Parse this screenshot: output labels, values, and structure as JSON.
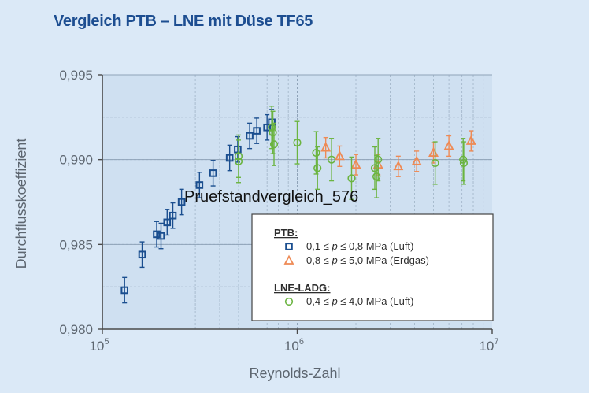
{
  "title": "Vergleich PTB – LNE mit Düse TF65",
  "watermark": "Pruefstandvergleich_576",
  "colors": {
    "background": "#dbe9f7",
    "plot_bg": "#cfe0f1",
    "ptb_luft": "#1a4e8f",
    "ptb_erdgas": "#ee8a55",
    "lne_luft": "#6bb441",
    "errbar_lne": "#6bb441",
    "title": "#1d4e91"
  },
  "chart_data": {
    "type": "scatter",
    "x_scale": "log",
    "xlim": [
      100000,
      10000000
    ],
    "ylim": [
      0.98,
      0.995
    ],
    "xlabel": "Reynolds-Zahl",
    "ylabel": "Durchflusskoeffizient",
    "x_ticks": [
      {
        "value": 100000,
        "base": "10",
        "exp": "5"
      },
      {
        "value": 1000000,
        "base": "10",
        "exp": "6"
      },
      {
        "value": 10000000,
        "base": "10",
        "exp": "7"
      }
    ],
    "y_ticks": [
      {
        "value": 0.98,
        "label": "0,980"
      },
      {
        "value": 0.985,
        "label": "0,985"
      },
      {
        "value": 0.99,
        "label": "0,990"
      },
      {
        "value": 0.995,
        "label": "0,995"
      }
    ],
    "grid": true,
    "legend_position": "bottom-right",
    "legend": {
      "groups": [
        {
          "heading": "PTB:",
          "entries": [
            {
              "marker": "square",
              "color_key": "ptb_luft",
              "prefix": "0,1 ≤ ",
              "var": "p",
              "suffix": " ≤ 0,8 MPa (Luft)"
            },
            {
              "marker": "triangle",
              "color_key": "ptb_erdgas",
              "prefix": "0,8 ≤ ",
              "var": "p",
              "suffix": " ≤ 5,0 MPa (Erdgas)"
            }
          ]
        },
        {
          "heading": "LNE-LADG:",
          "entries": [
            {
              "marker": "circle",
              "color_key": "lne_luft",
              "prefix": "0,4 ≤ ",
              "var": "p",
              "suffix": " ≤ 4,0 MPa (Luft)"
            }
          ]
        }
      ]
    },
    "series": [
      {
        "marker": "square",
        "color_key": "ptb_luft",
        "err": 0.00075,
        "points": [
          [
            130000,
            0.9823
          ],
          [
            160000,
            0.9844
          ],
          [
            190000,
            0.9856
          ],
          [
            200000,
            0.9855
          ],
          [
            215000,
            0.9863
          ],
          [
            230000,
            0.9867
          ],
          [
            255000,
            0.9875
          ],
          [
            315000,
            0.9885
          ],
          [
            370000,
            0.9892
          ],
          [
            450000,
            0.9901
          ],
          [
            495000,
            0.9906
          ],
          [
            570000,
            0.9914
          ],
          [
            620000,
            0.9917
          ],
          [
            700000,
            0.9919
          ],
          [
            740000,
            0.9922
          ]
        ]
      },
      {
        "marker": "triangle",
        "color_key": "ptb_erdgas",
        "err": 0.0006,
        "points": [
          [
            1400000,
            0.9907
          ],
          [
            1650000,
            0.9902
          ],
          [
            2000000,
            0.9897
          ],
          [
            2600000,
            0.9897
          ],
          [
            3300000,
            0.9896
          ],
          [
            4100000,
            0.9899
          ],
          [
            5000000,
            0.9904
          ],
          [
            6000000,
            0.9908
          ],
          [
            7800000,
            0.9911
          ]
        ]
      },
      {
        "marker": "circle",
        "color_key": "lne_luft",
        "err": 0.00125,
        "points": [
          [
            500000,
            0.9899
          ],
          [
            500000,
            0.9902
          ],
          [
            740000,
            0.9919
          ],
          [
            750000,
            0.9916
          ],
          [
            760000,
            0.9909
          ],
          [
            1000000,
            0.991
          ],
          [
            1250000,
            0.9904
          ],
          [
            1270000,
            0.9895
          ],
          [
            1500000,
            0.99
          ],
          [
            1900000,
            0.9889
          ],
          [
            2500000,
            0.9895
          ],
          [
            2550000,
            0.989
          ],
          [
            2600000,
            0.99
          ],
          [
            5100000,
            0.9898
          ],
          [
            7100000,
            0.99
          ],
          [
            7150000,
            0.9898
          ]
        ]
      }
    ]
  }
}
